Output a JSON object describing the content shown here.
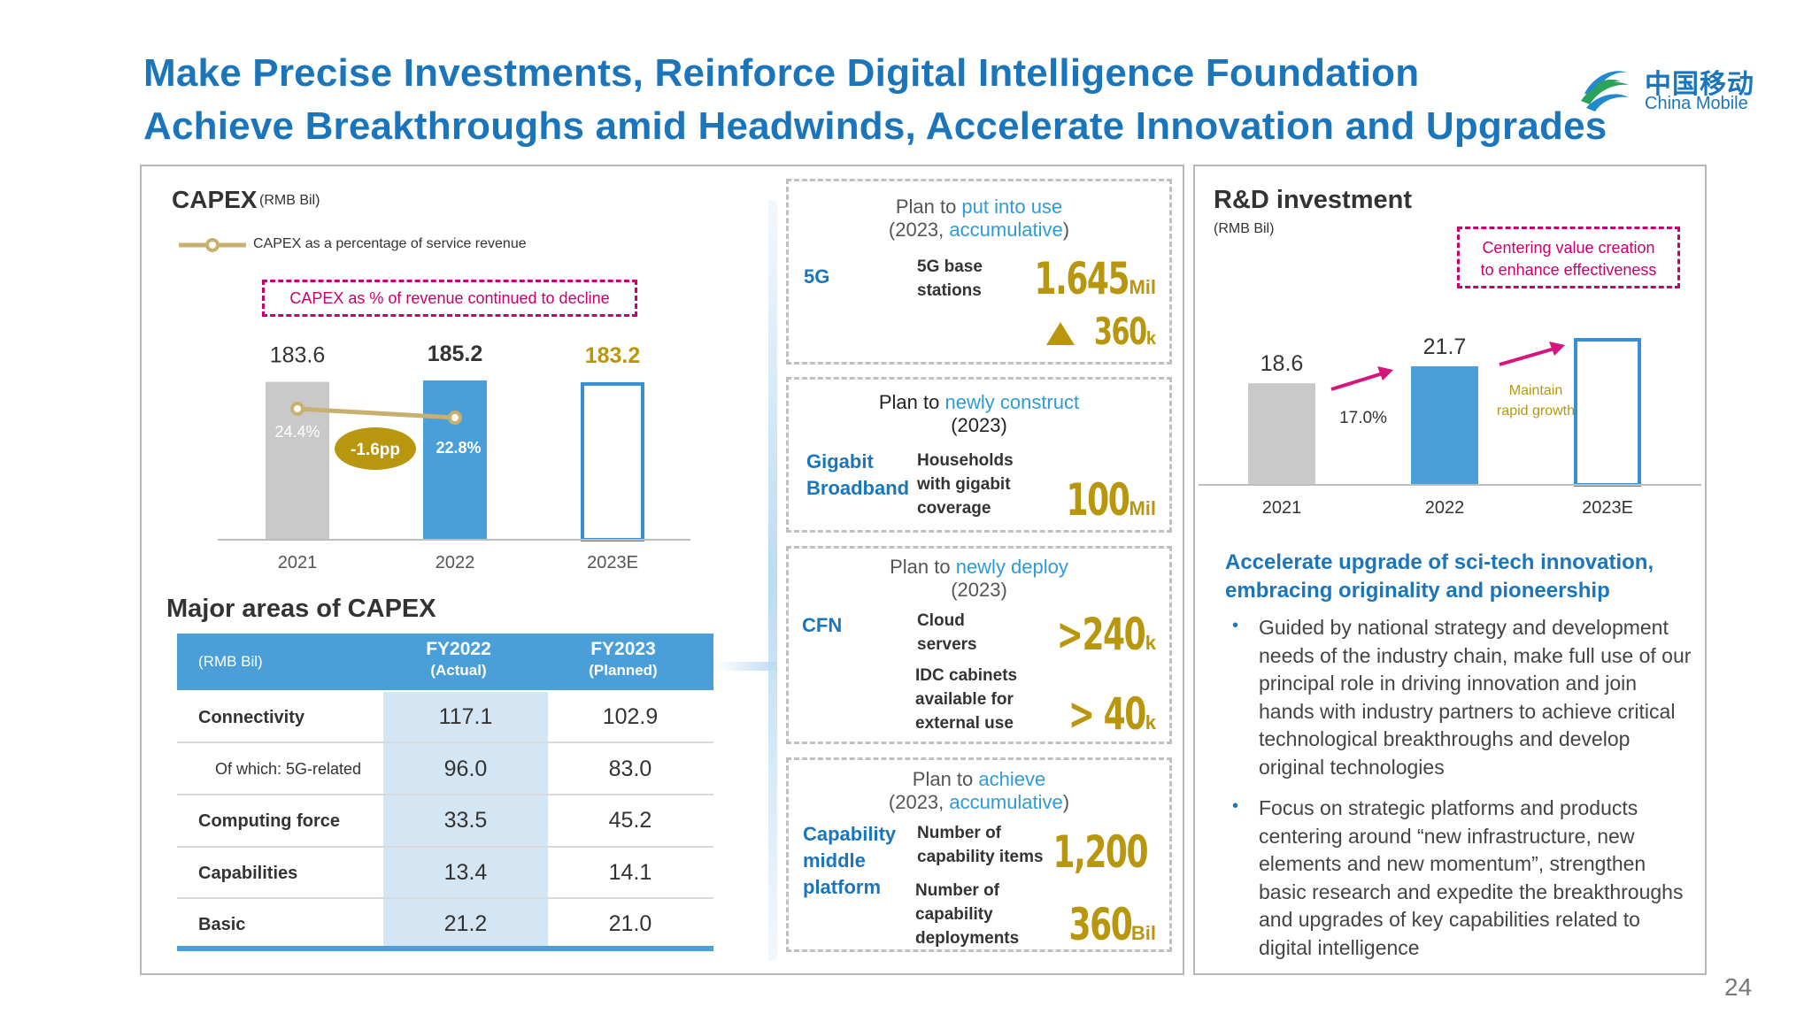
{
  "header": {
    "title_line1": "Make Precise Investments, Reinforce Digital Intelligence Foundation",
    "title_line2": "Achieve Breakthroughs amid Headwinds, Accelerate Innovation and Upgrades",
    "logo_cn": "中国移动",
    "logo_en": "China Mobile",
    "page_number": "24"
  },
  "capex": {
    "title": "CAPEX",
    "unit": "(RMB Bil)",
    "legend": "CAPEX as a percentage of service revenue",
    "note": "CAPEX as % of revenue continued to decline",
    "change_badge": "-1.6pp"
  },
  "major_areas": {
    "title": "Major areas of CAPEX",
    "header_unit": "(RMB Bil)",
    "col1": "FY2022",
    "col1_sub": "(Actual)",
    "col2": "FY2023",
    "col2_sub": "(Planned)",
    "rows": [
      {
        "label": "Connectivity",
        "fy2022": "117.1",
        "fy2023": "102.9"
      },
      {
        "label": "Of which: 5G-related",
        "fy2022": "96.0",
        "fy2023": "83.0"
      },
      {
        "label": "Computing force",
        "fy2022": "33.5",
        "fy2023": "45.2"
      },
      {
        "label": "Capabilities",
        "fy2022": "13.4",
        "fy2023": "14.1"
      },
      {
        "label": "Basic",
        "fy2022": "21.2",
        "fy2023": "21.0"
      }
    ]
  },
  "plans": {
    "p1": {
      "prefix": "Plan to ",
      "highlight": "put into use",
      "line2a": "(2023, ",
      "line2b": "accumulative",
      "line2c": ")",
      "category": "5G",
      "label": "5G base stations",
      "value": "1.645",
      "unit": "Mil",
      "delta": "360",
      "delta_unit": "k"
    },
    "p2": {
      "prefix": "Plan to ",
      "highlight": "newly construct",
      "line2": "(2023)",
      "category_a": "Gigabit",
      "category_b": "Broadband",
      "label": "Households with gigabit coverage",
      "value": "100",
      "unit": "Mil"
    },
    "p3": {
      "prefix": "Plan to ",
      "highlight": "newly deploy",
      "line2": "(2023)",
      "category": "CFN",
      "label1": "Cloud servers",
      "value1": ">240",
      "unit1": "k",
      "label2": "IDC cabinets available for external use",
      "value2": "> 40",
      "unit2": "k"
    },
    "p4": {
      "prefix": "Plan to ",
      "highlight": "achieve",
      "line2a": "(2023, ",
      "line2b": "accumulative",
      "line2c": ")",
      "category_a": "Capability",
      "category_b": "middle",
      "category_c": "platform",
      "label1": "Number of capability items",
      "value1": "1,200",
      "label2": "Number of capability deployments",
      "value2": "360",
      "unit2": "Bil"
    }
  },
  "rnd": {
    "title": "R&D investment",
    "unit": "(RMB Bil)",
    "note_line1": "Centering value creation",
    "note_line2": "to enhance effectiveness",
    "growth": "17.0%",
    "maintain_line1": "Maintain",
    "maintain_line2": "rapid growth",
    "heading_line1": "Accelerate upgrade of sci-tech innovation,",
    "heading_line2": "embracing originality and pioneership",
    "bullet1": "Guided by national strategy and development needs of the industry chain, make full use of our principal role in driving innovation and join hands with industry partners to achieve critical technological breakthroughs and develop original technologies",
    "bullet2": "Focus on strategic platforms and products centering around “new infrastructure, new elements and new momentum”, strengthen basic research and expedite the breakthroughs and upgrades of key capabilities related to digital intelligence"
  },
  "chart_data": [
    {
      "type": "bar",
      "title": "CAPEX",
      "ylabel": "(RMB Bil)",
      "categories": [
        "2021",
        "2022",
        "2023E"
      ],
      "values": [
        183.6,
        185.2,
        183.2
      ],
      "value_labels": [
        "183.6",
        "185.2",
        "183.2"
      ],
      "secondary": {
        "name": "CAPEX as a percentage of service revenue",
        "type": "line",
        "categories": [
          "2021",
          "2022"
        ],
        "values": [
          24.4,
          22.8
        ],
        "value_labels": [
          "24.4%",
          "22.8%"
        ]
      },
      "colors": [
        "#c9c9c9",
        "#4a9fd8",
        "#ffffff"
      ],
      "bar_outline_2023": "#3a8fd0",
      "line_color": "#c8b070"
    },
    {
      "type": "bar",
      "title": "R&D investment",
      "ylabel": "(RMB Bil)",
      "categories": [
        "2021",
        "2022",
        "2023E"
      ],
      "values": [
        18.6,
        21.7,
        null
      ],
      "value_labels": [
        "18.6",
        "21.7",
        ""
      ],
      "colors": [
        "#c9c9c9",
        "#4a9fd8",
        "#ffffff"
      ]
    }
  ]
}
